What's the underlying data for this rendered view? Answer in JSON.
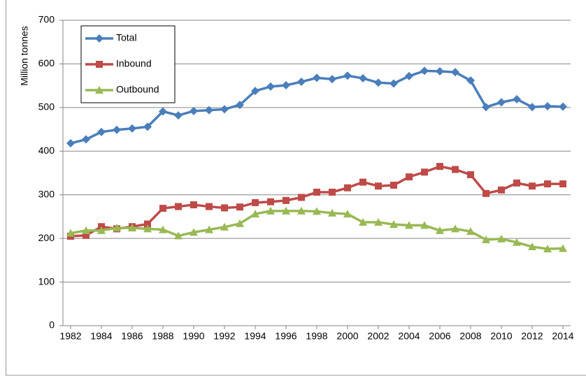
{
  "chart_data": {
    "type": "line",
    "y_label": "Million tonnes",
    "x": [
      1982,
      1983,
      1984,
      1985,
      1986,
      1987,
      1988,
      1989,
      1990,
      1991,
      1992,
      1993,
      1994,
      1995,
      1996,
      1997,
      1998,
      1999,
      2000,
      2001,
      2002,
      2003,
      2004,
      2005,
      2006,
      2007,
      2008,
      2009,
      2010,
      2011,
      2012,
      2013,
      2014
    ],
    "xlim": [
      1981.5,
      2014.5
    ],
    "xticks": [
      1982,
      1984,
      1986,
      1988,
      1990,
      1992,
      1994,
      1996,
      1998,
      2000,
      2002,
      2004,
      2006,
      2008,
      2010,
      2012,
      2014
    ],
    "ylim": [
      0,
      700
    ],
    "yticks": [
      0,
      100,
      200,
      300,
      400,
      500,
      600,
      700
    ],
    "grid": true,
    "legend": "upper left",
    "series": [
      {
        "name": "Total",
        "color": "#4a7ebb",
        "marker": "diamond",
        "values": [
          418,
          427,
          444,
          449,
          452,
          456,
          491,
          482,
          492,
          494,
          496,
          506,
          538,
          548,
          551,
          559,
          568,
          565,
          573,
          567,
          557,
          555,
          572,
          584,
          583,
          581,
          562,
          501,
          512,
          519,
          501,
          503,
          502
        ]
      },
      {
        "name": "Inbound",
        "color": "#be4b48",
        "marker": "square",
        "values": [
          205,
          207,
          227,
          222,
          227,
          233,
          269,
          273,
          277,
          273,
          270,
          272,
          282,
          284,
          287,
          294,
          306,
          306,
          316,
          329,
          320,
          322,
          341,
          352,
          365,
          358,
          346,
          303,
          311,
          327,
          320,
          325,
          325
        ]
      },
      {
        "name": "Outbound",
        "color": "#98b954",
        "marker": "triangle",
        "values": [
          212,
          218,
          218,
          224,
          224,
          222,
          220,
          206,
          214,
          220,
          226,
          234,
          256,
          263,
          263,
          263,
          262,
          258,
          256,
          237,
          237,
          232,
          230,
          230,
          218,
          222,
          216,
          197,
          199,
          191,
          181,
          176,
          177
        ]
      }
    ]
  }
}
